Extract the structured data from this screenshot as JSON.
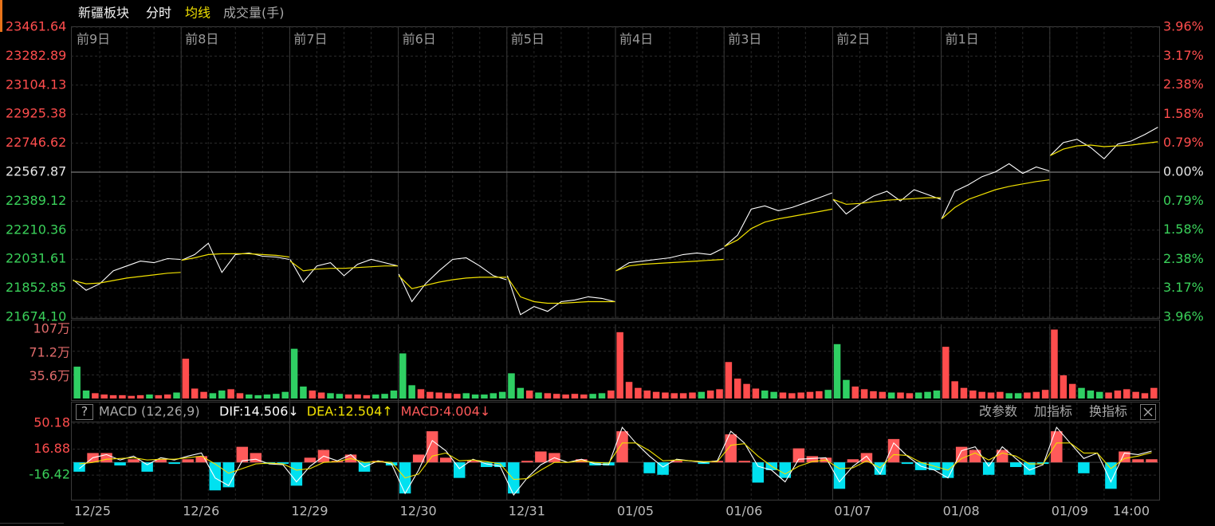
{
  "toolbar": {
    "help": "?",
    "buttons": [
      "改参数",
      "加指标",
      "换指标"
    ]
  },
  "chart_data": [
    {
      "type": "line",
      "title": "新疆板块",
      "up_color": "#ff4d4d",
      "down_color": "#3ad15a",
      "flat_color": "#e6e6e6",
      "grid": true,
      "day_labels": [
        "前9日",
        "前8日",
        "前7日",
        "前6日",
        "前5日",
        "前4日",
        "前3日",
        "前2日",
        "前1日"
      ],
      "x": [
        1,
        30,
        60,
        90,
        120,
        150,
        180,
        210,
        239,
        240,
        241,
        270,
        300,
        330,
        360,
        390,
        420,
        450,
        479,
        480,
        481,
        510,
        540,
        570,
        600,
        630,
        660,
        690,
        719,
        720,
        721,
        750,
        780,
        810,
        840,
        870,
        900,
        930,
        959,
        960,
        961,
        990,
        1020,
        1050,
        1080,
        1110,
        1140,
        1170,
        1199,
        1200,
        1201,
        1230,
        1260,
        1290,
        1320,
        1350,
        1380,
        1410,
        1439,
        1440,
        1441,
        1470,
        1500,
        1530,
        1560,
        1590,
        1620,
        1650,
        1679,
        1680,
        1681,
        1710,
        1740,
        1770,
        1800,
        1830,
        1860,
        1890,
        1919,
        1920,
        1921,
        1950,
        1980,
        2010,
        2040,
        2070,
        2100,
        2130,
        2159,
        2160,
        2161,
        2190,
        2220,
        2250,
        2280,
        2310,
        2340,
        2370,
        2399
      ],
      "series": [
        {
          "name": "分时",
          "color": "#ffffff",
          "values": [
            21905,
            21840,
            21880,
            21960,
            21990,
            22020,
            22010,
            22035,
            22030,
            null,
            22025,
            22060,
            22130,
            21950,
            22060,
            22070,
            22050,
            22045,
            22030,
            null,
            22030,
            21890,
            21990,
            22010,
            21930,
            22000,
            22030,
            22010,
            21990,
            null,
            21940,
            21770,
            21880,
            21960,
            22030,
            22040,
            21990,
            21930,
            21905,
            null,
            21930,
            21690,
            21740,
            21710,
            21770,
            21780,
            21800,
            21790,
            21770,
            null,
            21960,
            22010,
            22020,
            22030,
            22040,
            22060,
            22070,
            22060,
            22100,
            null,
            22110,
            22180,
            22340,
            22360,
            22330,
            22350,
            22380,
            22410,
            22440,
            null,
            22400,
            22310,
            22370,
            22420,
            22450,
            22390,
            22460,
            22430,
            22400,
            null,
            22280,
            22450,
            22490,
            22540,
            22570,
            22620,
            22560,
            22600,
            22575,
            null,
            22670,
            22750,
            22770,
            22720,
            22650,
            22740,
            22760,
            22800,
            22845
          ]
        },
        {
          "name": "均线",
          "color": "#f0e000",
          "values": [
            21900,
            21880,
            21885,
            21900,
            21915,
            21925,
            21935,
            21945,
            21950,
            null,
            22025,
            22040,
            22060,
            22065,
            22065,
            22065,
            22060,
            22055,
            22045,
            null,
            22020,
            21960,
            21970,
            21975,
            21975,
            21980,
            21985,
            21990,
            21990,
            null,
            21930,
            21850,
            21870,
            21890,
            21905,
            21915,
            21920,
            21920,
            21920,
            null,
            21920,
            21800,
            21770,
            21760,
            21760,
            21765,
            21770,
            21770,
            21770,
            null,
            21960,
            21990,
            22000,
            22005,
            22010,
            22015,
            22020,
            22025,
            22030,
            null,
            22110,
            22150,
            22220,
            22260,
            22280,
            22295,
            22310,
            22325,
            22340,
            null,
            22400,
            22370,
            22375,
            22385,
            22395,
            22400,
            22405,
            22410,
            22410,
            null,
            22280,
            22350,
            22400,
            22430,
            22460,
            22480,
            22495,
            22510,
            22520,
            null,
            22670,
            22710,
            22730,
            22735,
            22725,
            22730,
            22735,
            22745,
            22755
          ]
        }
      ],
      "xlim": [
        0,
        2400
      ],
      "ylim": [
        21674.1,
        23461.64
      ],
      "yticks": [
        23461.64,
        23282.89,
        23104.13,
        22925.38,
        22746.62,
        22567.87,
        22389.12,
        22210.36,
        22031.61,
        21852.85,
        {
          "value": 21674.1,
          "label": "21674.10"
        }
      ],
      "y2lim": [
        -3.96,
        3.96
      ],
      "y2ticks": [
        {
          "value": 3.96,
          "label": "3.96%"
        },
        {
          "value": 3.17,
          "label": "3.17%"
        },
        {
          "value": 2.38,
          "label": "2.38%"
        },
        {
          "value": 1.58,
          "label": "1.58%"
        },
        {
          "value": 0.79,
          "label": "0.79%"
        },
        {
          "value": 0,
          "label": "0.00%"
        },
        {
          "value": -0.79,
          "label": "0.79%"
        },
        {
          "value": -1.58,
          "label": "1.58%"
        },
        {
          "value": -2.38,
          "label": "2.38%"
        },
        {
          "value": -3.17,
          "label": "3.17%"
        },
        {
          "value": -3.96,
          "label": "3.96%"
        }
      ]
    },
    {
      "type": "bar",
      "title": "成交量(手)",
      "up_color": "#ff4d4d",
      "down_color": "#2fcf63",
      "label_color": "#e06a6a",
      "x": [
        10,
        30,
        50,
        70,
        90,
        110,
        130,
        150,
        170,
        190,
        210,
        230,
        250,
        270,
        290,
        310,
        330,
        350,
        370,
        390,
        410,
        430,
        450,
        470,
        490,
        510,
        530,
        550,
        570,
        590,
        610,
        630,
        650,
        670,
        690,
        710,
        730,
        750,
        770,
        790,
        810,
        830,
        850,
        870,
        890,
        910,
        930,
        950,
        970,
        990,
        1010,
        1030,
        1050,
        1070,
        1090,
        1110,
        1130,
        1150,
        1170,
        1190,
        1210,
        1230,
        1250,
        1270,
        1290,
        1310,
        1330,
        1350,
        1370,
        1390,
        1410,
        1430,
        1450,
        1470,
        1490,
        1510,
        1530,
        1550,
        1570,
        1590,
        1610,
        1630,
        1650,
        1670,
        1690,
        1710,
        1730,
        1750,
        1770,
        1790,
        1810,
        1830,
        1850,
        1870,
        1890,
        1910,
        1930,
        1950,
        1970,
        1990,
        2010,
        2030,
        2050,
        2070,
        2090,
        2110,
        2130,
        2150,
        2170,
        2190,
        2210,
        2230,
        2250,
        2270,
        2290,
        2310,
        2330,
        2350,
        2370,
        2390
      ],
      "values": [
        48,
        12,
        8,
        6,
        5,
        5,
        4,
        5,
        6,
        5,
        6,
        9,
        60,
        15,
        10,
        8,
        12,
        14,
        8,
        6,
        5,
        6,
        7,
        10,
        75,
        18,
        12,
        9,
        8,
        7,
        6,
        6,
        5,
        6,
        7,
        12,
        68,
        20,
        14,
        10,
        9,
        8,
        7,
        8,
        6,
        6,
        8,
        10,
        38,
        16,
        12,
        9,
        8,
        7,
        6,
        7,
        6,
        7,
        8,
        12,
        100,
        25,
        16,
        12,
        10,
        9,
        8,
        8,
        9,
        10,
        12,
        14,
        55,
        30,
        22,
        15,
        12,
        10,
        9,
        8,
        9,
        10,
        11,
        13,
        82,
        28,
        18,
        14,
        11,
        10,
        9,
        9,
        8,
        9,
        10,
        12,
        78,
        26,
        16,
        12,
        10,
        9,
        10,
        8,
        8,
        9,
        10,
        13,
        104,
        35,
        22,
        16,
        12,
        10,
        9,
        12,
        14,
        10,
        8,
        16
      ],
      "xlim": [
        0,
        2400
      ],
      "ylim": [
        0,
        107
      ],
      "yticks": [
        {
          "value": 107,
          "label": "107万"
        },
        {
          "value": 71.2,
          "label": "71.2万"
        },
        {
          "value": 35.6,
          "label": "35.6万"
        }
      ]
    },
    {
      "type": "macd",
      "title": "MACD (12,26,9)",
      "up_color": "#ff4d4d",
      "down_color": "#3ad15a",
      "x": [
        15,
        45,
        75,
        105,
        135,
        165,
        195,
        225,
        255,
        285,
        315,
        345,
        375,
        405,
        435,
        465,
        495,
        525,
        555,
        585,
        615,
        645,
        675,
        705,
        735,
        765,
        795,
        825,
        855,
        885,
        915,
        945,
        975,
        1005,
        1035,
        1065,
        1095,
        1125,
        1155,
        1185,
        1215,
        1245,
        1275,
        1305,
        1335,
        1365,
        1395,
        1425,
        1455,
        1485,
        1515,
        1545,
        1575,
        1605,
        1635,
        1665,
        1695,
        1725,
        1755,
        1785,
        1815,
        1845,
        1875,
        1905,
        1935,
        1965,
        1995,
        2025,
        2055,
        2085,
        2115,
        2145,
        2175,
        2205,
        2235,
        2265,
        2295,
        2325,
        2355,
        2385
      ],
      "series": [
        {
          "name": "DIF:14.506↓",
          "color": "#ffffff",
          "values": [
            -8,
            6,
            10,
            3,
            8,
            -3,
            6,
            3,
            8,
            12,
            -20,
            -30,
            2,
            4,
            -2,
            -3,
            -25,
            -5,
            8,
            2,
            10,
            -6,
            2,
            -2,
            -40,
            -10,
            28,
            15,
            -8,
            4,
            -2,
            -5,
            -42,
            -20,
            -3,
            6,
            0,
            4,
            -2,
            -3,
            45,
            25,
            8,
            -6,
            4,
            2,
            0,
            2,
            40,
            25,
            -5,
            -10,
            -25,
            4,
            5,
            6,
            -25,
            -5,
            8,
            -15,
            25,
            8,
            -5,
            -10,
            -20,
            15,
            20,
            -5,
            20,
            5,
            -10,
            -3,
            45,
            25,
            5,
            12,
            -25,
            12,
            10,
            14.506
          ]
        },
        {
          "name": "DEA:12.504↑",
          "color": "#f0e000",
          "values": [
            -2,
            0,
            4,
            5,
            6,
            3,
            4,
            4,
            6,
            8,
            -2,
            -14,
            -8,
            -2,
            -1,
            -2,
            -10,
            -8,
            0,
            1,
            5,
            0,
            1,
            0,
            -20,
            -15,
            8,
            12,
            2,
            3,
            1,
            -2,
            -22,
            -21,
            -10,
            0,
            0,
            2,
            0,
            -1,
            25,
            25,
            15,
            2,
            3,
            2,
            1,
            1,
            22,
            24,
            8,
            -5,
            -15,
            -5,
            1,
            3,
            -8,
            -7,
            2,
            -7,
            10,
            9,
            0,
            -5,
            -10,
            5,
            12,
            3,
            12,
            8,
            -2,
            -2,
            25,
            25,
            12,
            12,
            -8,
            5,
            8,
            12.504
          ]
        },
        {
          "name": "MACD:4.004↓",
          "color": "#ff5a5a",
          "negative_color": "#00e1f0",
          "values": [
            -12,
            12,
            12,
            -4,
            4,
            -12,
            4,
            -2,
            4,
            8,
            -36,
            -32,
            20,
            12,
            -2,
            -2,
            -30,
            6,
            16,
            2,
            10,
            -12,
            2,
            -4,
            -40,
            10,
            40,
            6,
            -20,
            2,
            -6,
            -6,
            -40,
            2,
            14,
            12,
            0,
            4,
            -4,
            -4,
            40,
            0,
            -14,
            -16,
            2,
            0,
            -2,
            2,
            36,
            2,
            -26,
            -10,
            -20,
            18,
            8,
            6,
            -34,
            4,
            12,
            -16,
            30,
            -2,
            -10,
            -10,
            -20,
            20,
            16,
            -16,
            16,
            -6,
            -16,
            -2,
            40,
            0,
            -14,
            0,
            -34,
            14,
            4,
            4.004
          ]
        }
      ],
      "xlim": [
        0,
        2400
      ],
      "ylim": [
        -48,
        77
      ],
      "yticks": [
        50.18,
        16.88,
        -16.42
      ],
      "xticks": [
        {
          "value": 0,
          "label": "12/25"
        },
        {
          "value": 240,
          "label": "12/26"
        },
        {
          "value": 480,
          "label": "12/29"
        },
        {
          "value": 720,
          "label": "12/30"
        },
        {
          "value": 960,
          "label": "12/31"
        },
        {
          "value": 1200,
          "label": "01/05"
        },
        {
          "value": 1440,
          "label": "01/06"
        },
        {
          "value": 1680,
          "label": "01/07"
        },
        {
          "value": 1920,
          "label": "01/08"
        },
        {
          "value": 2160,
          "label": "01/09"
        },
        {
          "value": 2340,
          "label": "14:00"
        }
      ]
    }
  ]
}
